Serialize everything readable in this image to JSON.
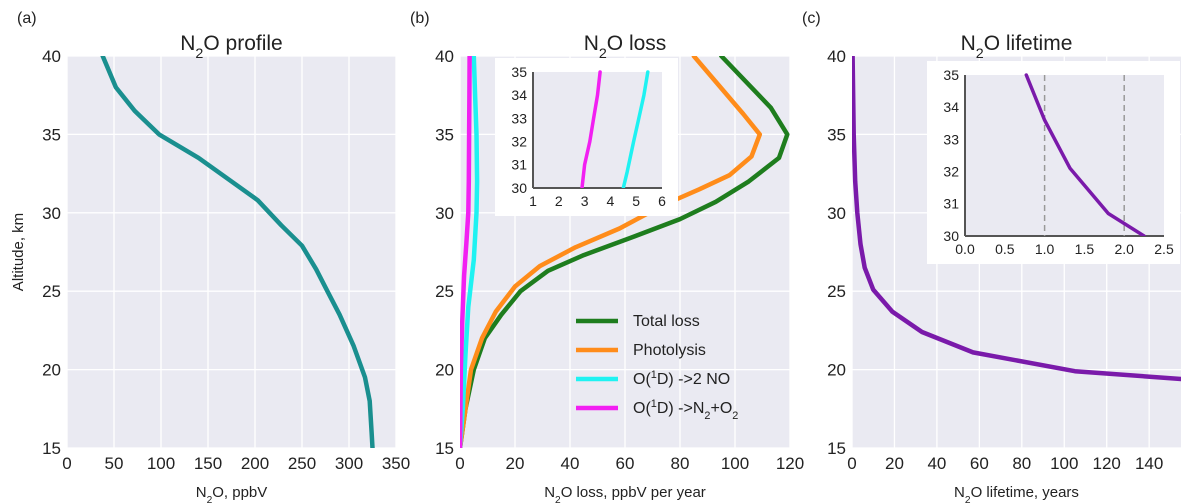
{
  "figure": {
    "panels": [
      {
        "letter": "(a)",
        "title_parts": [
          "N",
          "2",
          "O profile"
        ],
        "xlabel_parts": [
          "N",
          "2",
          "O, ppbV"
        ],
        "ylabel": "Altitude, km"
      },
      {
        "letter": "(b)",
        "title_parts": [
          "N",
          "2",
          "O loss"
        ],
        "xlabel_parts": [
          "N",
          "2",
          "O loss, ppbV per year"
        ],
        "ylabel": ""
      },
      {
        "letter": "(c)",
        "title_parts": [
          "N",
          "2",
          "O lifetime"
        ],
        "xlabel_parts": [
          "N",
          "2",
          "O lifetime, years"
        ],
        "ylabel": ""
      }
    ]
  },
  "colors": {
    "teal": "#1a8f8f",
    "green": "#1e7d1e",
    "orange": "#ff8c1a",
    "cyan": "#1ff2f2",
    "magenta": "#f21ff2",
    "purple": "#7a1aaa",
    "background": "#eaeaf2",
    "grid": "#ffffff",
    "dashed": "#999999"
  },
  "chart_data": [
    {
      "type": "line",
      "panel": "(a)",
      "title": "N2O profile",
      "xlabel": "N2O, ppbV",
      "ylabel": "Altitude, km",
      "xlim": [
        0,
        350
      ],
      "ylim": [
        15,
        40
      ],
      "xticks": [
        "0",
        "50",
        "100",
        "150",
        "200",
        "250",
        "300",
        "350"
      ],
      "yticks": [
        "15",
        "20",
        "25",
        "30",
        "35",
        "40"
      ],
      "series": [
        {
          "color": "teal",
          "x": [
            38,
            52,
            72,
            98,
            140,
            175,
            203,
            228,
            250,
            265,
            277,
            290,
            305,
            317,
            322,
            324,
            325
          ],
          "y": [
            40,
            38,
            36.5,
            35,
            33.5,
            32,
            30.8,
            29.2,
            27.9,
            26.4,
            25,
            23.5,
            21.5,
            19.5,
            18,
            16,
            15
          ]
        }
      ]
    },
    {
      "type": "line",
      "panel": "(b)",
      "title": "N2O loss",
      "xlabel": "N2O loss, ppbV per year",
      "xlim": [
        0,
        120
      ],
      "ylim": [
        15,
        40
      ],
      "xticks": [
        "0",
        "20",
        "40",
        "60",
        "80",
        "100",
        "120"
      ],
      "yticks": [
        "15",
        "20",
        "25",
        "30",
        "35",
        "40"
      ],
      "legend": {
        "placement": "lower-right",
        "entries": [
          {
            "color": "green",
            "parts": [
              "Total loss"
            ]
          },
          {
            "color": "orange",
            "parts": [
              "Photolysis"
            ]
          },
          {
            "color": "cyan",
            "parts": [
              "O(",
              "1",
              "D) ->2 NO"
            ]
          },
          {
            "color": "magenta",
            "parts": [
              "O(",
              "1",
              "D) ->N",
              "2",
              "+O",
              "2"
            ]
          }
        ]
      },
      "series": [
        {
          "name": "Total loss",
          "color": "green",
          "x": [
            0,
            2,
            5,
            9,
            15,
            22,
            32,
            45,
            62,
            80,
            93,
            105,
            116,
            119,
            113,
            95
          ],
          "y": [
            15,
            17.5,
            20,
            22,
            23.5,
            25,
            26.3,
            27.3,
            28.4,
            29.6,
            30.7,
            32,
            33.5,
            35,
            36.7,
            40
          ]
        },
        {
          "name": "Photolysis",
          "color": "orange",
          "x": [
            0,
            2,
            4,
            8,
            13,
            20,
            29,
            42,
            58,
            74,
            87,
            98,
            106,
            109,
            103,
            85
          ],
          "y": [
            15,
            17.5,
            20,
            22,
            23.7,
            25.3,
            26.6,
            27.8,
            29,
            30.5,
            31.5,
            32.4,
            33.6,
            35,
            36.3,
            40
          ]
        },
        {
          "name": "O(1D) ->2 NO",
          "color": "cyan",
          "x": [
            0,
            1,
            2,
            3,
            5,
            6,
            6.2,
            6.0,
            5.5,
            5.0
          ],
          "y": [
            15,
            17.5,
            21,
            24,
            27,
            30,
            32,
            35,
            37.5,
            40
          ]
        },
        {
          "name": "O(1D) ->N2+O2",
          "color": "magenta",
          "x": [
            0,
            0.3,
            0.8,
            1.5,
            2.3,
            3,
            3.2,
            3.3,
            3.4,
            3.5
          ],
          "y": [
            15,
            20,
            23,
            26,
            28,
            30,
            32,
            35,
            37.5,
            40
          ]
        }
      ],
      "inset": {
        "xlim": [
          1,
          6
        ],
        "ylim": [
          30,
          35
        ],
        "xticks": [
          "1",
          "2",
          "3",
          "4",
          "5",
          "6"
        ],
        "yticks": [
          "30",
          "31",
          "32",
          "33",
          "34",
          "35"
        ],
        "series": [
          {
            "color": "magenta",
            "x": [
              2.9,
              3.0,
              3.2,
              3.35,
              3.5,
              3.6
            ],
            "y": [
              30,
              31,
              32,
              33,
              34,
              35
            ]
          },
          {
            "color": "cyan",
            "x": [
              4.5,
              4.65,
              4.9,
              5.1,
              5.3,
              5.45
            ],
            "y": [
              30,
              30.7,
              32,
              33,
              34,
              35
            ]
          }
        ]
      }
    },
    {
      "type": "line",
      "panel": "(c)",
      "title": "N2O lifetime",
      "xlabel": "N2O lifetime, years",
      "xlim": [
        0,
        155
      ],
      "ylim": [
        15,
        40
      ],
      "xticks": [
        "0",
        "20",
        "40",
        "60",
        "80",
        "100",
        "120",
        "140"
      ],
      "yticks": [
        "15",
        "20",
        "25",
        "30",
        "35",
        "40"
      ],
      "series": [
        {
          "color": "purple",
          "x": [
            0.3,
            0.8,
            1.5,
            2.5,
            4,
            6,
            10,
            19,
            33,
            57,
            105,
            155
          ],
          "y": [
            40,
            35,
            32,
            30,
            28,
            26.5,
            25.1,
            23.7,
            22.4,
            21.1,
            19.9,
            19.4
          ]
        }
      ],
      "inset": {
        "xlim": [
          0,
          2.5
        ],
        "ylim": [
          30,
          35
        ],
        "xticks": [
          "0.0",
          "0.5",
          "1.0",
          "1.5",
          "2.0",
          "2.5"
        ],
        "yticks": [
          "30",
          "31",
          "32",
          "33",
          "34",
          "35"
        ],
        "dashed_x": [
          1.0,
          2.0
        ],
        "series": [
          {
            "color": "purple",
            "x": [
              0.77,
              1.0,
              1.32,
              1.8,
              2.25
            ],
            "y": [
              35,
              33.6,
              32.1,
              30.7,
              30
            ]
          }
        ]
      }
    }
  ]
}
